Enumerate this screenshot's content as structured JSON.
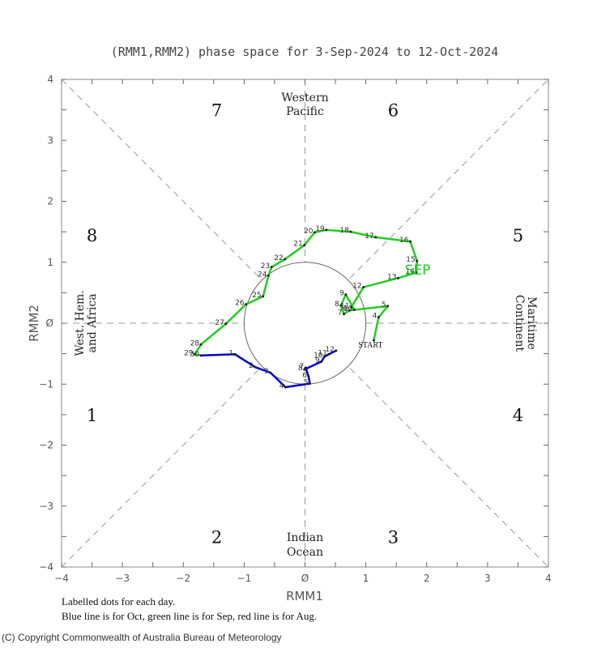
{
  "chart_data": {
    "type": "line",
    "title": "(RMM1,RMM2) phase space for  3-Sep-2024 to 12-Oct-2024",
    "xlabel": "RMM1",
    "ylabel": "RMM2",
    "xlim": [
      -4,
      4
    ],
    "ylim": [
      -4,
      4
    ],
    "xticks": [
      "-4",
      "-3",
      "-2",
      "-1",
      "0",
      "1",
      "2",
      "3",
      "4"
    ],
    "yticks": [
      "4",
      "3",
      "2",
      "1",
      "0",
      "-1",
      "-2",
      "-3",
      "-4"
    ],
    "grid": false,
    "unit_circle_radius": 1,
    "phases": [
      {
        "label": "1",
        "x": -3.5,
        "y": -1.5
      },
      {
        "label": "2",
        "x": -1.45,
        "y": -3.5
      },
      {
        "label": "3",
        "x": 1.45,
        "y": -3.5
      },
      {
        "label": "4",
        "x": 3.5,
        "y": -1.5
      },
      {
        "label": "5",
        "x": 3.5,
        "y": 1.45
      },
      {
        "label": "6",
        "x": 1.45,
        "y": 3.5
      },
      {
        "label": "7",
        "x": -1.45,
        "y": 3.5
      },
      {
        "label": "8",
        "x": -3.5,
        "y": 1.45
      }
    ],
    "regions": {
      "top": [
        "Western",
        "Pacific"
      ],
      "bottom": [
        "Indian",
        "Ocean"
      ],
      "left": [
        "West. Hem.",
        "and Africa"
      ],
      "right": [
        "Maritime",
        "Continent"
      ]
    },
    "series": [
      {
        "name": "Sep",
        "color": "#22cc22",
        "month_label": "SEP",
        "month_label_pos": {
          "x": 1.85,
          "y": 0.88
        },
        "points": [
          {
            "day": "START",
            "x": 1.13,
            "y": -0.28
          },
          {
            "day": "4",
            "x": 1.21,
            "y": 0.1
          },
          {
            "day": "5",
            "x": 1.36,
            "y": 0.28
          },
          {
            "day": "6",
            "x": 0.73,
            "y": 0.21
          },
          {
            "day": "7",
            "x": 0.64,
            "y": 0.15
          },
          {
            "day": "8",
            "x": 0.59,
            "y": 0.29
          },
          {
            "day": "9",
            "x": 0.67,
            "y": 0.47
          },
          {
            "day": "10",
            "x": 0.81,
            "y": 0.22
          },
          {
            "day": "11",
            "x": 0.76,
            "y": 0.26
          },
          {
            "day": "12",
            "x": 0.96,
            "y": 0.59
          },
          {
            "day": "13",
            "x": 1.53,
            "y": 0.74
          },
          {
            "day": "14",
            "x": 1.83,
            "y": 0.83
          },
          {
            "day": "15",
            "x": 1.84,
            "y": 1.02
          },
          {
            "day": "16",
            "x": 1.73,
            "y": 1.34
          },
          {
            "day": "17",
            "x": 1.16,
            "y": 1.41
          },
          {
            "day": "18",
            "x": 0.75,
            "y": 1.5
          },
          {
            "day": "19",
            "x": 0.35,
            "y": 1.53
          },
          {
            "day": "20",
            "x": 0.16,
            "y": 1.49
          },
          {
            "day": "21",
            "x": -0.01,
            "y": 1.28
          },
          {
            "day": "22",
            "x": -0.33,
            "y": 1.05
          },
          {
            "day": "23",
            "x": -0.55,
            "y": 0.92
          },
          {
            "day": "24",
            "x": -0.6,
            "y": 0.78
          },
          {
            "day": "25",
            "x": -0.69,
            "y": 0.44
          },
          {
            "day": "26",
            "x": -0.97,
            "y": 0.31
          },
          {
            "day": "27",
            "x": -1.3,
            "y": -0.01
          },
          {
            "day": "28",
            "x": -1.71,
            "y": -0.35
          },
          {
            "day": "29",
            "x": -1.81,
            "y": -0.51
          },
          {
            "day": "30",
            "x": -1.71,
            "y": -0.53
          }
        ]
      },
      {
        "name": "Oct",
        "color": "#0000cc",
        "points": [
          {
            "day": "30",
            "x": -1.71,
            "y": -0.53
          },
          {
            "day": "1",
            "x": -1.15,
            "y": -0.51
          },
          {
            "day": "2",
            "x": -0.82,
            "y": -0.72
          },
          {
            "day": "3",
            "x": -0.57,
            "y": -0.81
          },
          {
            "day": "4",
            "x": -0.32,
            "y": -1.05
          },
          {
            "day": "5",
            "x": 0.08,
            "y": -0.99
          },
          {
            "day": "6",
            "x": 0.06,
            "y": -0.88
          },
          {
            "day": "7",
            "x": 0.01,
            "y": -0.73
          },
          {
            "day": "8",
            "x": -0.01,
            "y": -0.76
          },
          {
            "day": "9",
            "x": 0.27,
            "y": -0.63
          },
          {
            "day": "10",
            "x": 0.32,
            "y": -0.55
          },
          {
            "day": "11",
            "x": 0.39,
            "y": -0.51
          },
          {
            "day": "12",
            "x": 0.51,
            "y": -0.45
          }
        ]
      }
    ],
    "notes": [
      "Labelled dots for each day.",
      "Blue line is for Oct, green line is for Sep, red line is for Aug."
    ]
  },
  "footer": {
    "copyright": "(C) Copyright Commonwealth of Australia Bureau of Meteorology"
  }
}
